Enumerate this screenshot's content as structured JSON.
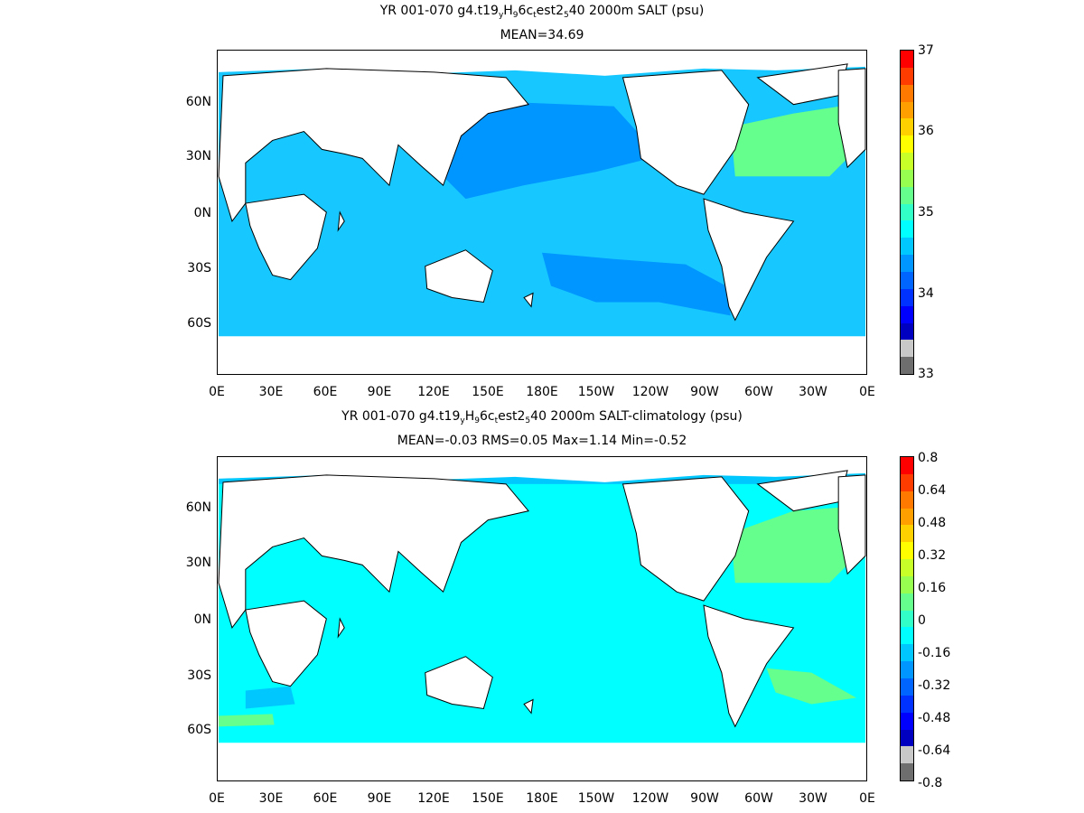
{
  "panels": [
    {
      "title_parts": [
        "YR 001-070 g4.t19",
        "y",
        "H",
        "9",
        "6c",
        "t",
        "est2",
        "5",
        "40 2000m SALT (psu)"
      ],
      "stats": "MEAN=34.69",
      "x_ticks": [
        "0E",
        "30E",
        "60E",
        "90E",
        "120E",
        "150E",
        "180E",
        "150W",
        "120W",
        "90W",
        "60W",
        "30W",
        "0E"
      ],
      "y_ticks": [
        "60N",
        "30N",
        "0N",
        "30S",
        "60S"
      ],
      "colorbar_labels": [
        "37",
        "36",
        "35",
        "34",
        "33"
      ],
      "ocean_base_color": "#16c8ff",
      "colorbar_colors": [
        "#ff0000",
        "#ff3c00",
        "#ff7800",
        "#ffa000",
        "#ffd000",
        "#ffff00",
        "#c8ff28",
        "#96ff50",
        "#64ff8c",
        "#32ffc8",
        "#00ffff",
        "#00c8ff",
        "#0096ff",
        "#0064ff",
        "#0032ff",
        "#0000ff",
        "#0000c0",
        "#c8c8c8",
        "#6e6e6e"
      ]
    },
    {
      "title_parts": [
        "YR 001-070 g4.t19",
        "y",
        "H",
        "9",
        "6c",
        "t",
        "est2",
        "5",
        "40 2000m SALT-climatology (psu)"
      ],
      "stats": "MEAN=-0.03   RMS=0.05   Max=1.14   Min=-0.52",
      "x_ticks": [
        "0E",
        "30E",
        "60E",
        "90E",
        "120E",
        "150E",
        "180E",
        "150W",
        "120W",
        "90W",
        "60W",
        "30W",
        "0E"
      ],
      "y_ticks": [
        "60N",
        "30N",
        "0N",
        "30S",
        "60S"
      ],
      "colorbar_labels": [
        "0.8",
        "0.64",
        "0.48",
        "0.32",
        "0.16",
        "0",
        "-0.16",
        "-0.32",
        "-0.48",
        "-0.64",
        "-0.8"
      ],
      "ocean_base_color": "#00ffff",
      "colorbar_colors": [
        "#ff0000",
        "#ff3c00",
        "#ff7800",
        "#ffa000",
        "#ffd000",
        "#ffff00",
        "#c8ff28",
        "#96ff50",
        "#64ff8c",
        "#32ffc8",
        "#00ffff",
        "#00c8ff",
        "#0096ff",
        "#0064ff",
        "#0032ff",
        "#0000ff",
        "#0000c0",
        "#c8c8c8",
        "#6e6e6e"
      ]
    }
  ]
}
